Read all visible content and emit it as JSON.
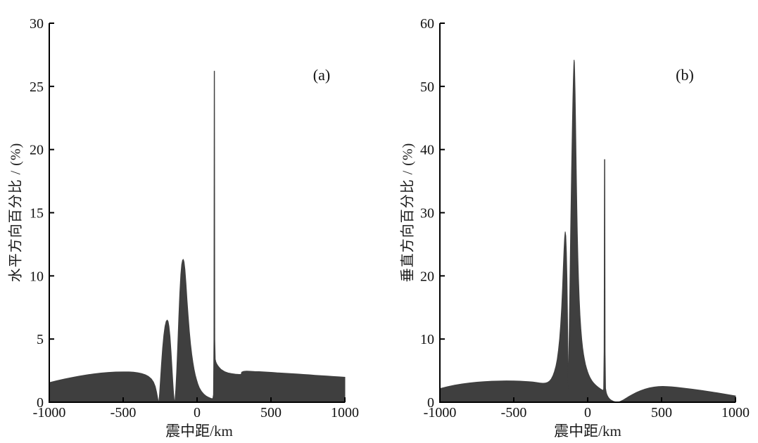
{
  "figure": {
    "background": "#ffffff",
    "area_fill_color": "#3f3f3f",
    "axis_color": "#000000",
    "text_color": "#111111"
  },
  "chart_data": [
    {
      "type": "area",
      "panel_label": "(a)",
      "xlabel": "震中距/km",
      "ylabel": "水平方向百分比 / (%)",
      "xlim": [
        -1000,
        1000
      ],
      "ylim": [
        0,
        30
      ],
      "xticks": [
        -1000,
        -500,
        0,
        500,
        1000
      ],
      "yticks": [
        0,
        5,
        10,
        15,
        20,
        25,
        30
      ],
      "grid": false,
      "legend": null,
      "x": [
        -1000,
        -950,
        -900,
        -850,
        -800,
        -750,
        -700,
        -650,
        -600,
        -550,
        -500,
        -460,
        -430,
        -400,
        -375,
        -350,
        -330,
        -310,
        -295,
        -283,
        -274,
        -267,
        -262,
        -259,
        -254,
        -248,
        -241,
        -233,
        -225,
        -217,
        -209,
        -202,
        -196,
        -190,
        -183,
        -176,
        -170,
        -164,
        -159,
        -155,
        -152,
        -149,
        -144,
        -138,
        -131,
        -124,
        -117,
        -110,
        -104,
        -98,
        -93,
        -88,
        -82,
        -75,
        -68,
        -60,
        -52,
        -44,
        -36,
        -28,
        -20,
        -12,
        -4,
        5,
        15,
        30,
        45,
        60,
        75,
        90,
        100,
        107,
        111,
        114,
        116,
        118,
        120,
        123,
        127,
        132,
        140,
        150,
        162,
        175,
        190,
        210,
        235,
        260,
        285,
        298,
        302,
        315,
        335,
        360,
        390,
        420,
        450,
        480,
        510,
        540,
        570,
        600,
        640,
        680,
        720,
        760,
        800,
        840,
        880,
        920,
        960,
        1000
      ],
      "y": [
        1.55,
        1.7,
        1.83,
        1.95,
        2.06,
        2.16,
        2.24,
        2.31,
        2.36,
        2.39,
        2.4,
        2.4,
        2.38,
        2.33,
        2.27,
        2.17,
        2.05,
        1.85,
        1.6,
        1.25,
        0.8,
        0.35,
        0.05,
        0,
        0.6,
        1.7,
        3.0,
        4.3,
        5.3,
        6.0,
        6.4,
        6.5,
        6.4,
        6.0,
        5.2,
        4.0,
        2.8,
        1.6,
        0.7,
        0.2,
        0,
        0.2,
        1.0,
        2.4,
        4.4,
        6.6,
        8.6,
        10.1,
        10.9,
        11.25,
        11.3,
        11.1,
        10.5,
        9.4,
        8.1,
        6.8,
        5.6,
        4.6,
        3.8,
        3.15,
        2.6,
        2.15,
        1.8,
        1.45,
        1.15,
        0.85,
        0.65,
        0.5,
        0.4,
        0.32,
        0.28,
        0.3,
        0.6,
        5.0,
        26.2,
        26.2,
        5.0,
        3.4,
        3.2,
        3.05,
        2.9,
        2.75,
        2.6,
        2.5,
        2.4,
        2.32,
        2.26,
        2.22,
        2.2,
        2.2,
        2.38,
        2.44,
        2.46,
        2.45,
        2.43,
        2.42,
        2.4,
        2.38,
        2.36,
        2.33,
        2.31,
        2.29,
        2.26,
        2.23,
        2.2,
        2.17,
        2.13,
        2.1,
        2.07,
        2.04,
        2.01,
        1.98
      ]
    },
    {
      "type": "area",
      "panel_label": "(b)",
      "xlabel": "震中距/km",
      "ylabel": "垂直方向百分比 / (%)",
      "xlim": [
        -1000,
        1000
      ],
      "ylim": [
        0,
        60
      ],
      "xticks": [
        -1000,
        -500,
        0,
        500,
        1000
      ],
      "yticks": [
        0,
        10,
        20,
        30,
        40,
        50,
        60
      ],
      "grid": false,
      "legend": null,
      "x": [
        -1000,
        -950,
        -900,
        -850,
        -800,
        -750,
        -700,
        -650,
        -600,
        -550,
        -500,
        -460,
        -430,
        -400,
        -370,
        -345,
        -325,
        -308,
        -295,
        -283,
        -270,
        -258,
        -246,
        -235,
        -225,
        -215,
        -206,
        -198,
        -190,
        -183,
        -176,
        -170,
        -165,
        -160,
        -156,
        -152,
        -148,
        -144,
        -140,
        -137,
        -134,
        -132,
        -130.5,
        -129,
        -127,
        -124,
        -121,
        -118,
        -115,
        -112,
        -109,
        -106,
        -103,
        -100,
        -97,
        -94,
        -92,
        -90,
        -88,
        -85,
        -82,
        -79,
        -76,
        -73,
        -70,
        -66,
        -62,
        -57,
        -52,
        -46,
        -40,
        -34,
        -28,
        -22,
        -15,
        -8,
        0,
        8,
        17,
        27,
        38,
        50,
        62,
        75,
        87,
        97,
        104,
        108,
        111,
        113.5,
        116,
        118,
        121,
        126,
        132,
        140,
        150,
        162,
        175,
        190,
        205,
        220,
        238,
        258,
        280,
        305,
        330,
        358,
        388,
        418,
        448,
        478,
        508,
        538,
        568,
        600,
        635,
        670,
        705,
        740,
        775,
        810,
        845,
        880,
        915,
        950,
        1000
      ],
      "y": [
        2.15,
        2.45,
        2.7,
        2.9,
        3.05,
        3.17,
        3.26,
        3.32,
        3.36,
        3.38,
        3.37,
        3.34,
        3.3,
        3.26,
        3.2,
        3.12,
        3.05,
        3.0,
        3.0,
        3.05,
        3.15,
        3.35,
        3.7,
        4.2,
        4.85,
        5.7,
        6.8,
        8.2,
        10.0,
        12.2,
        15.0,
        18.2,
        21.3,
        24.2,
        26.0,
        27.0,
        26.3,
        23.8,
        19.5,
        14.5,
        8.5,
        4.5,
        2.2,
        4.5,
        8.0,
        12.5,
        17.5,
        22.5,
        27.5,
        32.0,
        36.5,
        40.5,
        44.5,
        48.0,
        51.0,
        53.3,
        54.2,
        53.8,
        52.3,
        49.0,
        44.5,
        39.5,
        34.8,
        30.5,
        26.8,
        22.8,
        19.5,
        16.3,
        13.8,
        11.6,
        9.9,
        8.6,
        7.6,
        6.8,
        6.0,
        5.4,
        4.8,
        4.3,
        3.85,
        3.45,
        3.1,
        2.8,
        2.55,
        2.3,
        2.1,
        1.95,
        1.85,
        2.1,
        8.0,
        38.4,
        38.4,
        8.0,
        2.2,
        1.5,
        1.1,
        0.75,
        0.48,
        0.28,
        0.13,
        0.04,
        0.02,
        0.12,
        0.32,
        0.6,
        0.92,
        1.25,
        1.55,
        1.83,
        2.08,
        2.27,
        2.4,
        2.48,
        2.5,
        2.48,
        2.43,
        2.36,
        2.27,
        2.17,
        2.07,
        1.96,
        1.85,
        1.73,
        1.6,
        1.47,
        1.33,
        1.2,
        1.0
      ]
    }
  ]
}
